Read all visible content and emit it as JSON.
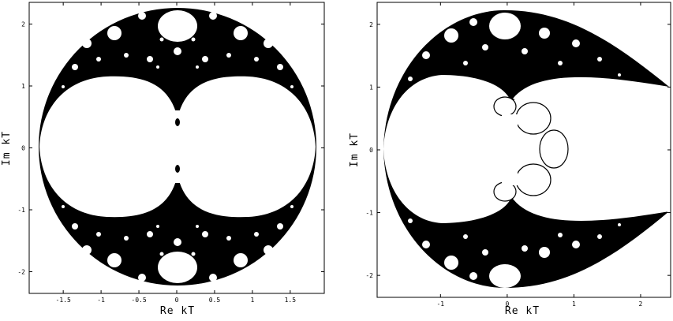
{
  "chart_data": [
    {
      "type": "other",
      "title": "",
      "xlabel": "Re  kT",
      "ylabel": "Im  kT",
      "xticks": [
        "-1.5",
        "-1",
        "-0.5",
        "0",
        "0.5",
        "1",
        "1.5"
      ],
      "yticks": [
        "2",
        "1",
        "0",
        "-1",
        "-2"
      ],
      "xlim": [
        -1.95,
        1.95
      ],
      "ylim": [
        -2.35,
        2.35
      ],
      "grid": false,
      "region_color": "#000000",
      "background_color": "#ffffff"
    },
    {
      "type": "other",
      "title": "",
      "xlabel": "Re  kT",
      "ylabel": "Im  kT",
      "xticks": [
        "-1",
        "0",
        "1",
        "2"
      ],
      "yticks": [
        "2",
        "1",
        "0",
        "-1",
        "-2"
      ],
      "xlim": [
        -1.95,
        2.45
      ],
      "ylim": [
        -2.35,
        2.35
      ],
      "grid": false,
      "region_color": "#000000",
      "background_color": "#ffffff"
    }
  ]
}
